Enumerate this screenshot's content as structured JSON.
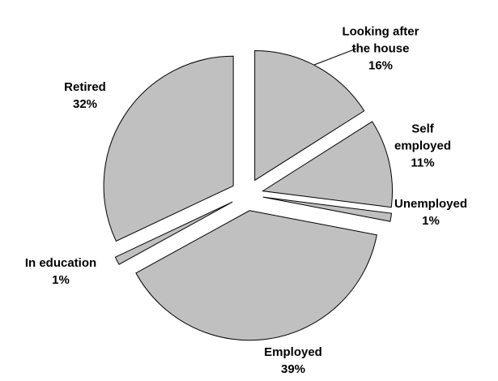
{
  "chart_data": {
    "type": "pie",
    "categories": [
      "Looking after the house",
      "Self employed",
      "Unemployed",
      "Employed",
      "In education",
      "Retired"
    ],
    "values": [
      16,
      11,
      1,
      39,
      1,
      32
    ],
    "value_labels": [
      "16%",
      "11%",
      "1%",
      "39%",
      "1%",
      "32%"
    ],
    "color": "#c0c0c0"
  }
}
